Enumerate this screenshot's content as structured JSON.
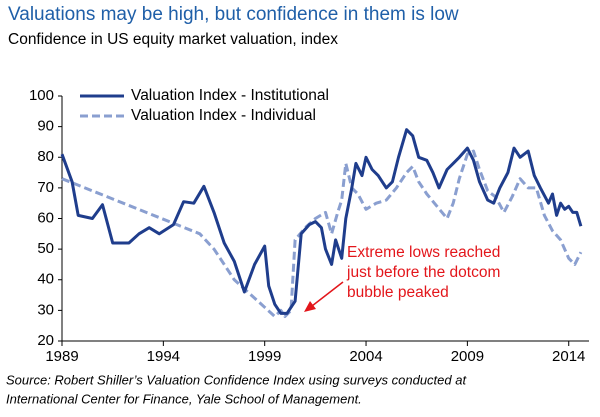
{
  "chart_data": {
    "type": "line",
    "title": "Valuations may be high, but confidence in them is low",
    "subtitle": "Confidence in US equity market valuation, index",
    "xlim": [
      1989,
      2015
    ],
    "xticks": [
      1989,
      1994,
      1999,
      2004,
      2009,
      2014
    ],
    "ylim": [
      20,
      100
    ],
    "yticks": [
      20,
      30,
      40,
      50,
      60,
      70,
      80,
      90,
      100
    ],
    "grid": false,
    "legend": "upper left",
    "series": [
      {
        "name": "Valuation Index - Institutional",
        "color": "#1f3d8c",
        "dash": false,
        "x": [
          1989.0,
          1989.5,
          1989.8,
          1990.5,
          1991.0,
          1991.5,
          1992.3,
          1992.8,
          1993.3,
          1993.8,
          1994.5,
          1995.0,
          1995.5,
          1996.0,
          1996.5,
          1997.0,
          1997.5,
          1998.0,
          1998.5,
          1999.0,
          1999.2,
          1999.5,
          1999.8,
          2000.1,
          2000.3,
          2000.5,
          2000.8,
          2001.2,
          2001.5,
          2001.8,
          2002.0,
          2002.3,
          2002.5,
          2002.8,
          2003.0,
          2003.3,
          2003.5,
          2003.8,
          2004.0,
          2004.3,
          2004.6,
          2005.0,
          2005.3,
          2005.6,
          2006.0,
          2006.3,
          2006.6,
          2007.0,
          2007.3,
          2007.6,
          2008.0,
          2008.3,
          2008.6,
          2009.0,
          2009.3,
          2009.6,
          2010.0,
          2010.3,
          2010.6,
          2011.0,
          2011.3,
          2011.6,
          2012.0,
          2012.3,
          2012.6,
          2013.0,
          2013.2,
          2013.4,
          2013.6,
          2013.8,
          2014.0,
          2014.2,
          2014.4,
          2014.6
        ],
        "values": [
          81,
          72,
          61,
          60,
          64.5,
          52,
          52,
          55,
          57,
          55,
          58,
          65.5,
          65,
          70.5,
          62,
          52,
          46,
          36,
          45,
          51,
          38,
          32,
          29,
          29,
          31,
          33,
          55,
          58,
          59,
          57,
          50,
          45,
          53,
          47,
          60,
          70,
          78,
          74,
          80,
          76,
          74,
          70,
          72,
          80,
          89,
          87,
          80,
          79,
          75,
          70,
          76,
          78,
          80,
          83,
          79,
          72,
          66,
          65,
          70,
          75,
          83,
          80,
          82,
          74,
          70,
          65,
          68,
          61,
          65,
          63,
          64,
          62,
          62,
          57.5
        ]
      },
      {
        "name": "Valuation Index - Individual",
        "color": "#8a9fd0",
        "dash": true,
        "x": [
          1989.0,
          1995.8,
          1996.5,
          1997.0,
          1997.5,
          1998.0,
          1999.0,
          1999.5,
          1999.8,
          2000.0,
          2000.3,
          2000.5,
          2001.0,
          2001.5,
          2002.0,
          2002.3,
          2002.6,
          2002.8,
          2003.0,
          2003.3,
          2003.6,
          2004.0,
          2004.5,
          2005.0,
          2005.5,
          2006.0,
          2006.3,
          2006.6,
          2007.0,
          2007.5,
          2008.0,
          2008.3,
          2008.6,
          2009.0,
          2009.3,
          2009.6,
          2010.0,
          2010.4,
          2010.8,
          2011.2,
          2011.6,
          2012.0,
          2012.4,
          2012.8,
          2013.2,
          2013.6,
          2014.0,
          2014.3,
          2014.6
        ],
        "values": [
          73,
          55,
          50,
          45,
          40,
          37,
          31,
          28,
          30,
          28,
          30,
          53,
          57,
          60,
          62,
          55,
          62,
          66,
          78,
          70,
          68,
          63,
          65,
          66,
          70,
          75,
          77,
          72,
          68,
          64,
          60,
          65,
          73,
          81,
          82,
          76,
          69,
          67,
          62,
          67,
          73,
          70,
          70,
          61,
          56,
          53,
          47,
          45,
          49
        ]
      }
    ],
    "annotation": [
      "Extreme lows reached",
      "just before the dotcom",
      "bubble peaked"
    ],
    "annotation_color": "#e3161b",
    "source": [
      "Source: Robert Shiller’s Valuation Confidence Index using surveys conducted at",
      "International Center for Finance, Yale School of Management."
    ]
  }
}
